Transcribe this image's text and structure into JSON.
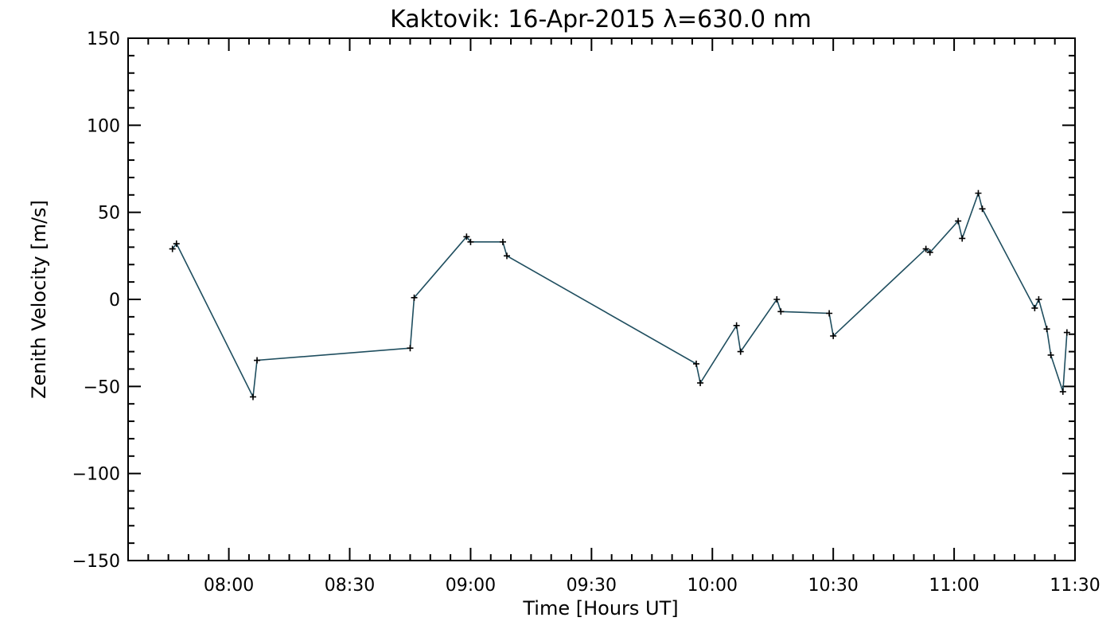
{
  "chart_data": {
    "type": "line",
    "title": "Kaktovik: 16-Apr-2015 λ=630.0 nm",
    "xlabel": "Time [Hours UT]",
    "ylabel": "Zenith Velocity [m/s]",
    "xlim": [
      "07:35",
      "11:30"
    ],
    "ylim": [
      -150,
      150
    ],
    "x_ticks": [
      "08:00",
      "08:30",
      "09:00",
      "09:30",
      "10:00",
      "10:30",
      "11:00",
      "11:30"
    ],
    "y_ticks": [
      150,
      100,
      50,
      0,
      -50,
      -100,
      -150
    ],
    "y_tick_labels": [
      "150",
      "100",
      "50",
      "0",
      "−50",
      "−100",
      "−150"
    ],
    "grid": false,
    "marker": "+",
    "line_color": "#1f4e5f",
    "series": [
      {
        "x": [
          "07:46",
          "07:47",
          "08:06",
          "08:07",
          "08:45",
          "08:46",
          "08:59",
          "09:00",
          "09:08",
          "09:09",
          "09:56",
          "09:57",
          "10:06",
          "10:07",
          "10:16",
          "10:17",
          "10:29",
          "10:30",
          "10:53",
          "10:54",
          "11:01",
          "11:02",
          "11:06",
          "11:07",
          "11:20",
          "11:21",
          "11:23",
          "11:24",
          "11:27",
          "11:28"
        ],
        "y": [
          29,
          32,
          -56,
          -35,
          -28,
          1,
          36,
          33,
          33,
          25,
          -37,
          -48,
          -15,
          -30,
          0,
          -7,
          -8,
          -21,
          29,
          27,
          45,
          35,
          61,
          52,
          -5,
          0,
          -17,
          -32,
          -53,
          -19
        ]
      }
    ]
  }
}
